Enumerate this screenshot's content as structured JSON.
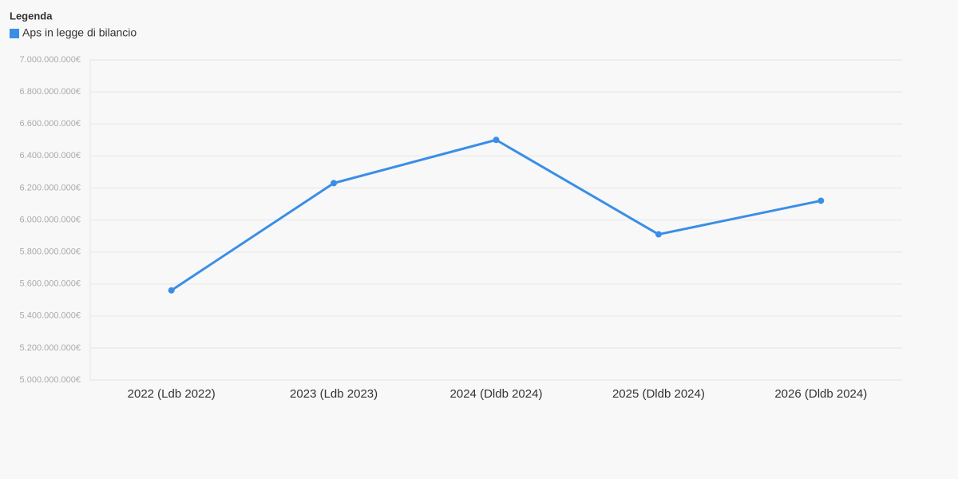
{
  "chart_data": {
    "type": "line",
    "legend_title": "Legenda",
    "categories": [
      "2022 (Ldb 2022)",
      "2023 (Ldb 2023)",
      "2024 (Dldb 2024)",
      "2025 (Dldb 2024)",
      "2026 (Dldb 2024)"
    ],
    "series": [
      {
        "name": "Aps in legge di bilancio",
        "color": "#3a8ee6",
        "values": [
          5560000000,
          6230000000,
          6500000000,
          5910000000,
          6120000000
        ]
      }
    ],
    "ylim": [
      5000000000,
      7000000000
    ],
    "yticks": [
      {
        "value": 5000000000,
        "label": "5.000.000.000€"
      },
      {
        "value": 5200000000,
        "label": "5.200.000.000€"
      },
      {
        "value": 5400000000,
        "label": "5.400.000.000€"
      },
      {
        "value": 5600000000,
        "label": "5.600.000.000€"
      },
      {
        "value": 5800000000,
        "label": "5.800.000.000€"
      },
      {
        "value": 6000000000,
        "label": "6.000.000.000€"
      },
      {
        "value": 6200000000,
        "label": "6.200.000.000€"
      },
      {
        "value": 6400000000,
        "label": "6.400.000.000€"
      },
      {
        "value": 6600000000,
        "label": "6.600.000.000€"
      },
      {
        "value": 6800000000,
        "label": "6.800.000.000€"
      },
      {
        "value": 7000000000,
        "label": "7.000.000.000€"
      }
    ],
    "grid": true
  }
}
